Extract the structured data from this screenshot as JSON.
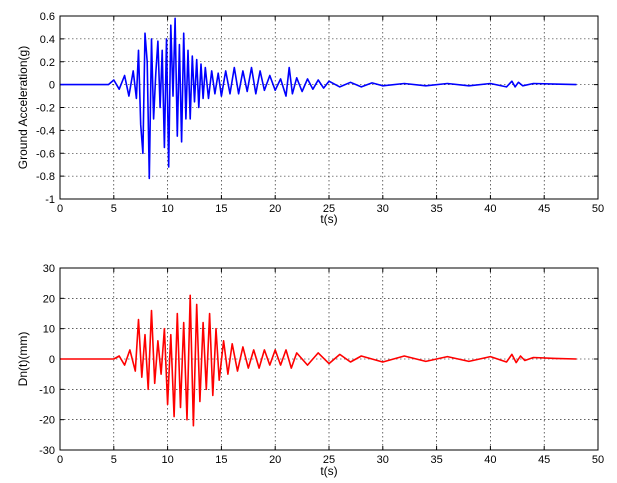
{
  "chart_data": [
    {
      "type": "line",
      "xlabel": "t(s)",
      "ylabel": "Ground Acceleration(g)",
      "xlim": [
        0,
        50
      ],
      "ylim": [
        -1,
        0.6
      ],
      "x_ticks": [
        "0",
        "5",
        "10",
        "15",
        "20",
        "25",
        "30",
        "35",
        "40",
        "45",
        "50"
      ],
      "y_ticks": [
        "-1",
        "-0.8",
        "-0.6",
        "-0.4",
        "-0.2",
        "0",
        "0.2",
        "0.4",
        "0.6"
      ],
      "grid": true,
      "color": "#0000ff",
      "series": [
        {
          "t": [
            0,
            4.5,
            5.0,
            5.5,
            6.0,
            6.4,
            6.8,
            7.1,
            7.3,
            7.5,
            7.7,
            7.9,
            8.1,
            8.3,
            8.5,
            8.7,
            8.9,
            9.1,
            9.3,
            9.5,
            9.7,
            9.9,
            10.1,
            10.3,
            10.5,
            10.7,
            10.9,
            11.1,
            11.3,
            11.5,
            11.7,
            11.9,
            12.1,
            12.3,
            12.5,
            12.7,
            12.9,
            13.1,
            13.3,
            13.5,
            13.8,
            14.1,
            14.4,
            14.7,
            15.0,
            15.4,
            15.8,
            16.2,
            16.6,
            17.0,
            17.4,
            17.8,
            18.2,
            18.6,
            19.0,
            19.5,
            20.0,
            20.5,
            21.0,
            21.3,
            21.6,
            22.0,
            22.5,
            23.0,
            23.5,
            24.0,
            24.5,
            25.0,
            26.0,
            27.0,
            28.0,
            29.0,
            30.0,
            32.0,
            34.0,
            36.0,
            38.0,
            40.0,
            41.5,
            42.0,
            42.3,
            42.6,
            43.0,
            44.0,
            46.0,
            48.0
          ],
          "y": [
            0,
            0,
            0.04,
            -0.04,
            0.08,
            -0.1,
            0.12,
            -0.12,
            0.3,
            -0.35,
            -0.6,
            0.45,
            0.2,
            -0.82,
            0.4,
            -0.3,
            0.1,
            0.38,
            -0.2,
            0.3,
            -0.55,
            0.4,
            -0.72,
            0.52,
            -0.1,
            0.58,
            -0.45,
            0.35,
            -0.5,
            0.45,
            -0.3,
            0.3,
            -0.3,
            0.25,
            -0.15,
            0.22,
            -0.2,
            0.18,
            -0.12,
            0.15,
            -0.12,
            0.12,
            -0.08,
            0.1,
            -0.1,
            0.12,
            -0.08,
            0.15,
            -0.08,
            0.12,
            -0.06,
            0.15,
            -0.08,
            0.12,
            -0.05,
            0.08,
            -0.05,
            0.05,
            -0.1,
            0.15,
            -0.08,
            0.06,
            -0.06,
            0.05,
            -0.04,
            0.04,
            -0.03,
            0.03,
            -0.02,
            0.02,
            -0.02,
            0.015,
            -0.01,
            0.01,
            -0.01,
            0.01,
            -0.01,
            0.01,
            -0.02,
            0.03,
            -0.02,
            0.02,
            -0.01,
            0.01,
            0.005,
            0
          ]
        }
      ]
    },
    {
      "type": "line",
      "xlabel": "t(s)",
      "ylabel": "Dn(t)(mm)",
      "xlim": [
        0,
        50
      ],
      "ylim": [
        -30,
        30
      ],
      "x_ticks": [
        "0",
        "5",
        "10",
        "15",
        "20",
        "25",
        "30",
        "35",
        "40",
        "45",
        "50"
      ],
      "y_ticks": [
        "-30",
        "-20",
        "-10",
        "0",
        "10",
        "20",
        "30"
      ],
      "grid": true,
      "color": "#ff0000",
      "series": [
        {
          "t": [
            0,
            5.0,
            5.5,
            6.0,
            6.5,
            7.0,
            7.3,
            7.6,
            7.9,
            8.2,
            8.5,
            8.8,
            9.1,
            9.4,
            9.7,
            10.0,
            10.3,
            10.6,
            10.9,
            11.2,
            11.5,
            11.8,
            12.1,
            12.4,
            12.7,
            13.0,
            13.3,
            13.6,
            13.9,
            14.2,
            14.5,
            14.8,
            15.2,
            15.6,
            16.0,
            16.5,
            17.0,
            17.5,
            18.0,
            18.5,
            19.0,
            19.5,
            20.0,
            20.5,
            21.0,
            21.5,
            22.0,
            23.0,
            24.0,
            25.0,
            26.0,
            27.0,
            28.0,
            30.0,
            32.0,
            34.0,
            36.0,
            38.0,
            40.0,
            41.5,
            42.0,
            42.4,
            42.8,
            43.2,
            44.0,
            46.0,
            48.0
          ],
          "y": [
            0,
            0,
            1,
            -2,
            3,
            -4,
            13,
            -6,
            8,
            -10,
            16,
            -8,
            6,
            -5,
            10,
            -15,
            8,
            -19,
            15,
            -16,
            12,
            -20,
            21,
            -22,
            18,
            -14,
            12,
            -10,
            15,
            -12,
            10,
            -7,
            6,
            -5,
            5,
            -4,
            4,
            -3,
            3,
            -3,
            3,
            -2,
            3,
            -2,
            3,
            -3,
            2,
            -2,
            2,
            -1.5,
            1.5,
            -1,
            1,
            -1,
            1,
            -0.8,
            0.8,
            -0.8,
            0.8,
            -1,
            1.5,
            -1.2,
            1,
            -0.5,
            0.5,
            0.2,
            0
          ]
        }
      ]
    }
  ]
}
